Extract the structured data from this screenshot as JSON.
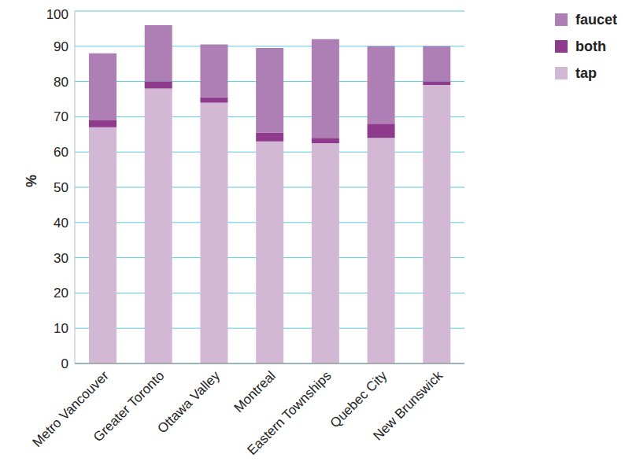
{
  "chart_data": {
    "type": "bar",
    "y_label": "%",
    "categories": [
      "Metro Vancouver",
      "Greater Toronto",
      "Ottawa Valley",
      "Montreal",
      "Eastern Townships",
      "Quebec City",
      "New Brunswick"
    ],
    "series": [
      {
        "name": "tap",
        "color": "#d3b8d5",
        "values": [
          67,
          78,
          74,
          63,
          62.5,
          64,
          79
        ]
      },
      {
        "name": "both",
        "color": "#8e3a8d",
        "values": [
          2,
          2,
          1.5,
          2.5,
          1.5,
          4,
          1
        ]
      },
      {
        "name": "faucet",
        "color": "#ae7fb4",
        "values": [
          19,
          16,
          15,
          24,
          28,
          22,
          10
        ]
      }
    ],
    "ylim": [
      0,
      100
    ],
    "yticks": [
      0,
      10,
      20,
      30,
      40,
      50,
      60,
      70,
      80,
      90,
      100
    ],
    "stacked": true,
    "grid": true,
    "legend": "top-right"
  }
}
